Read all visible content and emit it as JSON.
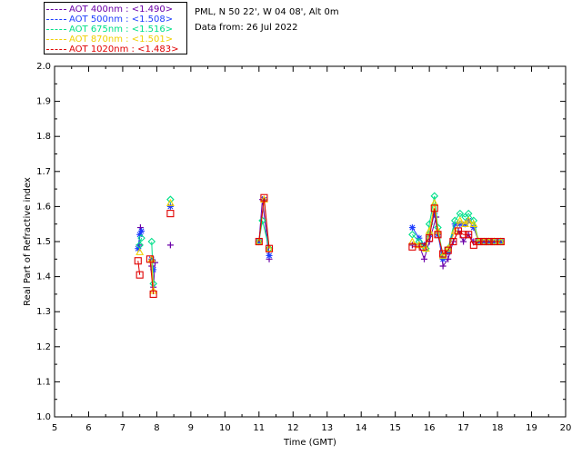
{
  "header": {
    "site": "PML, N 50 22', W 04 08', Alt 0m",
    "date": "Data from: 26 Jul 2022"
  },
  "legend": [
    {
      "label": "AOT  400nm : <1.490>",
      "color": "#6b00a8"
    },
    {
      "label": "AOT  500nm : <1.508>",
      "color": "#1f3fff"
    },
    {
      "label": "AOT  675nm : <1.516>",
      "color": "#00e08a"
    },
    {
      "label": "AOT  870nm : <1.501>",
      "color": "#f0d000"
    },
    {
      "label": "AOT 1020nm : <1.483>",
      "color": "#e00000"
    }
  ],
  "chart_data": {
    "type": "scatter",
    "xlabel": "Time (GMT)",
    "ylabel": "Real Part of Refractive index",
    "xlim": [
      5,
      20
    ],
    "ylim": [
      1.0,
      2.0
    ],
    "xticks": [
      "5",
      "6",
      "7",
      "8",
      "9",
      "10",
      "11",
      "12",
      "13",
      "14",
      "15",
      "16",
      "17",
      "18",
      "19",
      "20"
    ],
    "yticks": [
      "1.0",
      "1.1",
      "1.2",
      "1.3",
      "1.4",
      "1.5",
      "1.6",
      "1.7",
      "1.8",
      "1.9",
      "2.0"
    ],
    "series": [
      {
        "name": "AOT  400nm",
        "color": "#6b00a8",
        "marker": "+",
        "segments": [
          [
            [
              7.48,
              1.49
            ],
            [
              7.52,
              1.54
            ]
          ],
          [
            [
              7.85,
              1.43
            ],
            [
              7.9,
              1.37
            ],
            [
              7.95,
              1.44
            ]
          ],
          [
            [
              8.4,
              1.49
            ]
          ],
          [
            [
              11.0,
              1.5
            ],
            [
              11.1,
              1.62
            ],
            [
              11.3,
              1.45
            ]
          ],
          [
            [
              15.5,
              1.49
            ],
            [
              15.7,
              1.49
            ],
            [
              15.85,
              1.45
            ],
            [
              16.0,
              1.5
            ],
            [
              16.2,
              1.57
            ],
            [
              16.4,
              1.43
            ],
            [
              16.55,
              1.45
            ],
            [
              16.7,
              1.5
            ],
            [
              16.85,
              1.53
            ],
            [
              17.0,
              1.5
            ],
            [
              17.15,
              1.52
            ],
            [
              17.3,
              1.5
            ],
            [
              17.45,
              1.5
            ],
            [
              17.6,
              1.5
            ],
            [
              17.75,
              1.5
            ],
            [
              17.9,
              1.5
            ],
            [
              18.1,
              1.5
            ]
          ]
        ]
      },
      {
        "name": "AOT  500nm",
        "color": "#1f3fff",
        "marker": "*",
        "segments": [
          [
            [
              7.45,
              1.48
            ],
            [
              7.5,
              1.52
            ],
            [
              7.55,
              1.53
            ]
          ],
          [
            [
              7.85,
              1.45
            ],
            [
              7.9,
              1.42
            ]
          ],
          [
            [
              8.4,
              1.6
            ]
          ],
          [
            [
              11.0,
              1.5
            ],
            [
              11.15,
              1.62
            ],
            [
              11.3,
              1.46
            ]
          ],
          [
            [
              15.5,
              1.54
            ],
            [
              15.7,
              1.51
            ],
            [
              15.85,
              1.49
            ],
            [
              16.0,
              1.52
            ],
            [
              16.15,
              1.58
            ],
            [
              16.25,
              1.52
            ],
            [
              16.4,
              1.45
            ],
            [
              16.55,
              1.47
            ],
            [
              16.75,
              1.55
            ],
            [
              16.9,
              1.55
            ],
            [
              17.05,
              1.55
            ],
            [
              17.15,
              1.56
            ],
            [
              17.3,
              1.54
            ],
            [
              17.45,
              1.5
            ],
            [
              17.6,
              1.5
            ],
            [
              17.75,
              1.5
            ],
            [
              17.9,
              1.5
            ],
            [
              18.1,
              1.5
            ]
          ]
        ]
      },
      {
        "name": "AOT  675nm",
        "color": "#00e08a",
        "marker": "diamond",
        "segments": [
          [
            [
              7.5,
              1.49
            ],
            [
              7.55,
              1.51
            ]
          ],
          [
            [
              7.85,
              1.5
            ],
            [
              7.9,
              1.38
            ]
          ],
          [
            [
              8.4,
              1.62
            ]
          ],
          [
            [
              11.0,
              1.5
            ],
            [
              11.1,
              1.56
            ],
            [
              11.3,
              1.48
            ]
          ],
          [
            [
              15.5,
              1.52
            ],
            [
              15.7,
              1.5
            ],
            [
              15.9,
              1.48
            ],
            [
              16.0,
              1.55
            ],
            [
              16.15,
              1.63
            ],
            [
              16.25,
              1.54
            ],
            [
              16.4,
              1.46
            ],
            [
              16.55,
              1.48
            ],
            [
              16.75,
              1.56
            ],
            [
              16.9,
              1.58
            ],
            [
              17.05,
              1.57
            ],
            [
              17.15,
              1.58
            ],
            [
              17.3,
              1.56
            ],
            [
              17.45,
              1.5
            ],
            [
              17.6,
              1.5
            ],
            [
              17.75,
              1.5
            ],
            [
              17.9,
              1.5
            ],
            [
              18.1,
              1.5
            ]
          ]
        ]
      },
      {
        "name": "AOT  870nm",
        "color": "#f0d000",
        "marker": "triangle",
        "segments": [
          [
            [
              7.5,
              1.47
            ]
          ],
          [
            [
              7.85,
              1.45
            ],
            [
              7.9,
              1.36
            ]
          ],
          [
            [
              8.4,
              1.61
            ]
          ],
          [
            [
              11.0,
              1.5
            ],
            [
              11.15,
              1.62
            ],
            [
              11.3,
              1.48
            ]
          ],
          [
            [
              15.5,
              1.5
            ],
            [
              15.7,
              1.49
            ],
            [
              15.9,
              1.48
            ],
            [
              16.0,
              1.53
            ],
            [
              16.15,
              1.61
            ],
            [
              16.25,
              1.53
            ],
            [
              16.4,
              1.46
            ],
            [
              16.55,
              1.48
            ],
            [
              16.75,
              1.53
            ],
            [
              16.9,
              1.56
            ],
            [
              17.05,
              1.55
            ],
            [
              17.15,
              1.56
            ],
            [
              17.3,
              1.55
            ],
            [
              17.45,
              1.5
            ],
            [
              17.6,
              1.5
            ],
            [
              17.75,
              1.5
            ],
            [
              17.9,
              1.5
            ],
            [
              18.1,
              1.5
            ]
          ]
        ]
      },
      {
        "name": "AOT 1020nm",
        "color": "#e00000",
        "marker": "square",
        "segments": [
          [
            [
              7.45,
              1.445
            ],
            [
              7.5,
              1.405
            ]
          ],
          [
            [
              7.8,
              1.45
            ],
            [
              7.9,
              1.35
            ]
          ],
          [
            [
              8.4,
              1.58
            ]
          ],
          [
            [
              11.0,
              1.5
            ],
            [
              11.15,
              1.625
            ],
            [
              11.3,
              1.48
            ]
          ],
          [
            [
              15.5,
              1.485
            ],
            [
              15.8,
              1.485
            ],
            [
              16.0,
              1.51
            ],
            [
              16.15,
              1.595
            ],
            [
              16.25,
              1.52
            ],
            [
              16.4,
              1.465
            ],
            [
              16.55,
              1.475
            ],
            [
              16.7,
              1.5
            ],
            [
              16.85,
              1.53
            ],
            [
              17.0,
              1.52
            ],
            [
              17.15,
              1.52
            ],
            [
              17.3,
              1.49
            ],
            [
              17.45,
              1.5
            ],
            [
              17.6,
              1.5
            ],
            [
              17.75,
              1.5
            ],
            [
              17.9,
              1.5
            ],
            [
              18.1,
              1.5
            ]
          ]
        ]
      }
    ]
  }
}
